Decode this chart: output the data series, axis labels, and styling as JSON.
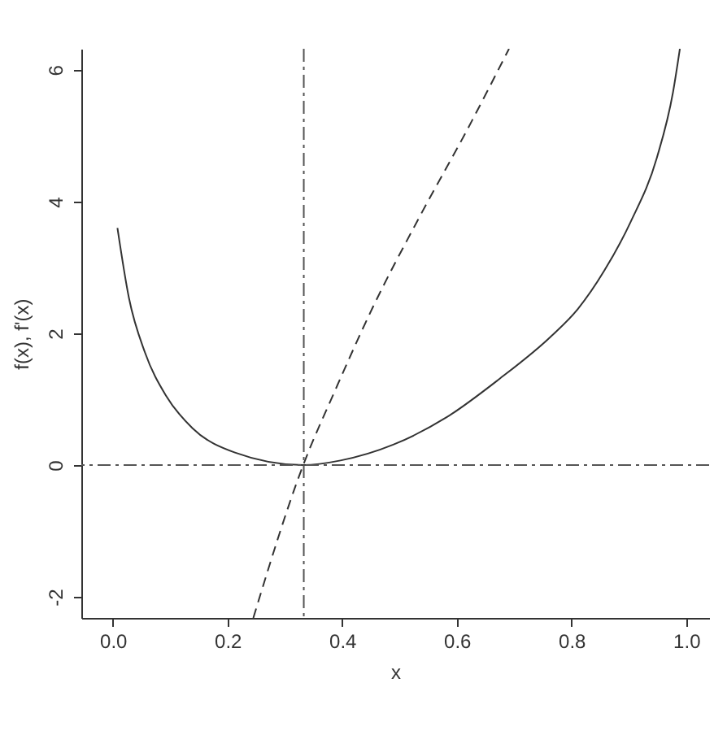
{
  "chart_data": {
    "type": "line",
    "xlabel": "x",
    "ylabel": "f(x), f'(x)",
    "series": [
      {
        "x": [
          0.008,
          0.028,
          0.056,
          0.093,
          0.139,
          0.213,
          0.332,
          0.397,
          0.489,
          0.581,
          0.673,
          0.765,
          0.811,
          0.857,
          0.903,
          0.949,
          0.977,
          0.989
        ],
        "values": [
          3.6,
          2.54,
          1.71,
          1.05,
          0.56,
          0.19,
          0.0,
          0.07,
          0.31,
          0.72,
          1.3,
          1.96,
          2.37,
          2.95,
          3.69,
          4.67,
          5.66,
          6.32
        ],
        "color": "#333333",
        "line_style": "solid"
      },
      {
        "x": [
          0.245,
          0.332,
          0.388,
          0.452,
          0.535,
          0.618,
          0.691
        ],
        "values": [
          -2.32,
          0.0,
          1.14,
          2.37,
          3.77,
          5.09,
          6.32
        ],
        "color": "#333333",
        "line_style": "dashed"
      }
    ],
    "ref_lines": [
      {
        "axis": "x",
        "value": 0.333,
        "color": "#555555",
        "line_style": "dashdot"
      },
      {
        "axis": "y",
        "value": 0,
        "color": "#555555",
        "line_style": "dashdot"
      }
    ],
    "xlim": [
      -0.055,
      1.04
    ],
    "ylim": [
      -2.32,
      6.32
    ],
    "xticks": [
      {
        "value": 0,
        "label": "0.0"
      },
      0.2,
      0.4,
      0.6,
      0.8,
      {
        "value": 1,
        "label": "1.0"
      }
    ],
    "yticks": [
      -2,
      0,
      2,
      4,
      6
    ],
    "grid": false,
    "marker": "none"
  }
}
